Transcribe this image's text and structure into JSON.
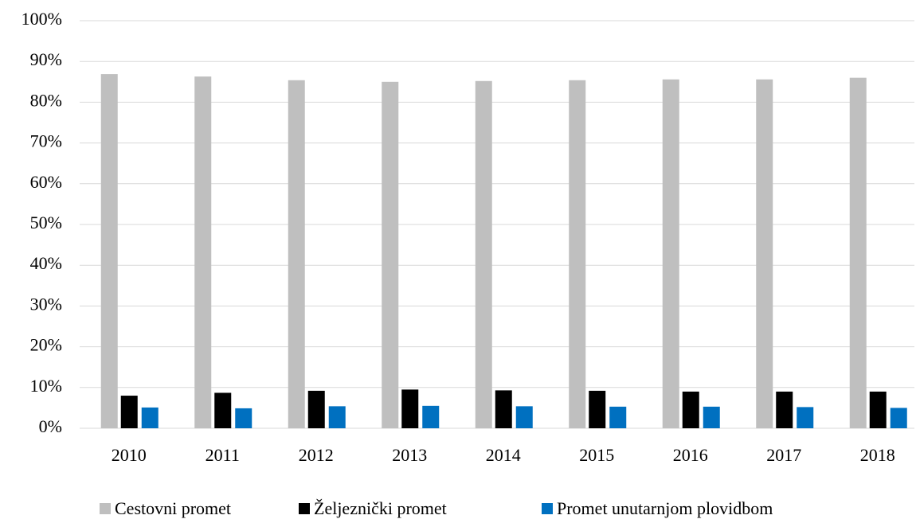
{
  "chart_data": {
    "type": "bar",
    "categories": [
      "2010",
      "2011",
      "2012",
      "2013",
      "2014",
      "2015",
      "2016",
      "2017",
      "2018"
    ],
    "series": [
      {
        "name": "Cestovni promet",
        "color": "#bfbfbf",
        "values": [
          86.9,
          86.3,
          85.4,
          85.0,
          85.2,
          85.4,
          85.6,
          85.6,
          86.0
        ]
      },
      {
        "name": "Željeznički promet",
        "color": "#000000",
        "values": [
          8.0,
          8.7,
          9.2,
          9.5,
          9.3,
          9.2,
          9.0,
          9.0,
          9.0
        ]
      },
      {
        "name": "Promet unutarnjom plovidbom",
        "color": "#0070c0",
        "values": [
          5.1,
          4.9,
          5.4,
          5.5,
          5.4,
          5.3,
          5.3,
          5.2,
          5.0
        ]
      }
    ],
    "ylim": [
      0,
      100
    ],
    "yticks": [
      {
        "value": 0,
        "label": "0%"
      },
      {
        "value": 10,
        "label": "10%"
      },
      {
        "value": 20,
        "label": "20%"
      },
      {
        "value": 30,
        "label": "30%"
      },
      {
        "value": 40,
        "label": "40%"
      },
      {
        "value": 50,
        "label": "50%"
      },
      {
        "value": 60,
        "label": "60%"
      },
      {
        "value": 70,
        "label": "70%"
      },
      {
        "value": 80,
        "label": "80%"
      },
      {
        "value": 90,
        "label": "90%"
      },
      {
        "value": 100,
        "label": "100%"
      }
    ],
    "grid": true,
    "legend": "bottom"
  }
}
